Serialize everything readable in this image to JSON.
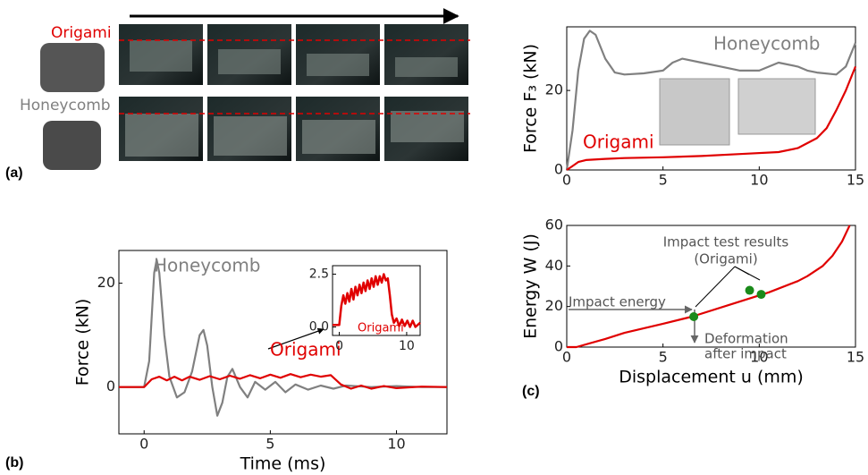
{
  "panel_a": {
    "rows": [
      "Origami",
      "Honeycomb"
    ]
  },
  "panel_labels": [
    "(a)",
    "(b)",
    "(c)"
  ],
  "chart_data": [
    {
      "type": "line",
      "xlabel": "Time (ms)",
      "ylabel": "Force (kN)",
      "xlim": [
        -1,
        12
      ],
      "ylim": [
        -9,
        26.3
      ],
      "xticks": [
        0,
        5,
        10
      ],
      "yticks": [
        0,
        20
      ],
      "series": [
        {
          "name": "Honeycomb",
          "color": "#808080",
          "x": [
            -1,
            0,
            0.2,
            0.4,
            0.5,
            0.6,
            0.8,
            1.0,
            1.3,
            1.6,
            1.9,
            2.2,
            2.35,
            2.5,
            2.7,
            2.9,
            3.1,
            3.3,
            3.5,
            3.8,
            4.1,
            4.4,
            4.8,
            5.2,
            5.6,
            6,
            6.5,
            7,
            7.5,
            8,
            9,
            10,
            11,
            12
          ],
          "values": [
            0,
            0,
            5,
            22,
            24.5,
            22,
            10,
            2,
            -2,
            -1,
            3,
            10,
            11,
            8,
            0,
            -5.5,
            -3,
            2,
            3.5,
            0,
            -2,
            1,
            -0.5,
            1,
            -1,
            0.5,
            -0.5,
            0.3,
            -0.3,
            0.3,
            0,
            0.2,
            0,
            0
          ]
        },
        {
          "name": "Origami",
          "color": "#e00000",
          "x": [
            -1,
            0,
            0.3,
            0.6,
            0.9,
            1.2,
            1.5,
            1.8,
            2.2,
            2.6,
            3,
            3.4,
            3.8,
            4.2,
            4.6,
            5,
            5.4,
            5.8,
            6.2,
            6.6,
            7,
            7.4,
            7.8,
            8.2,
            8.6,
            9,
            9.5,
            10,
            11,
            12
          ],
          "values": [
            0,
            0,
            1.5,
            2,
            1.3,
            2,
            1.3,
            2,
            1.4,
            2.1,
            1.5,
            2.2,
            1.6,
            2.3,
            1.7,
            2.4,
            1.8,
            2.5,
            1.9,
            2.4,
            2,
            2.3,
            0.5,
            -0.3,
            0.3,
            -0.3,
            0.2,
            -0.2,
            0.1,
            0
          ]
        }
      ]
    },
    {
      "type": "line",
      "xlim": [
        -1,
        12
      ],
      "ylim": [
        -0.4,
        2.9
      ],
      "xticks": [
        0,
        10
      ],
      "yticks": [
        {
          "value": 0,
          "label": "0.0"
        },
        2.5
      ],
      "series": [
        {
          "name": "Origami",
          "color": "#e00000",
          "x": [
            -1,
            0,
            0.3,
            0.6,
            0.9,
            1.2,
            1.5,
            1.8,
            2.1,
            2.4,
            2.7,
            3,
            3.3,
            3.6,
            3.9,
            4.2,
            4.5,
            4.8,
            5.1,
            5.4,
            5.7,
            6,
            6.3,
            6.6,
            6.9,
            7.2,
            7.5,
            7.8,
            8.1,
            8.5,
            8.9,
            9.3,
            9.7,
            10.1,
            10.5,
            10.9,
            11.3,
            12
          ],
          "values": [
            0.1,
            0.1,
            1,
            1.5,
            1.1,
            1.6,
            1.2,
            1.8,
            1.3,
            1.9,
            1.5,
            2,
            1.6,
            2.1,
            1.7,
            2.2,
            1.8,
            2.3,
            1.9,
            2.4,
            2,
            2.4,
            2.1,
            2.5,
            2.2,
            2.3,
            1.5,
            0.6,
            0.2,
            0.4,
            0.05,
            0.35,
            0.05,
            0.3,
            0,
            0.3,
            0,
            0.2
          ]
        }
      ]
    },
    {
      "type": "line",
      "ylabel": "Force F₃ (kN)",
      "xlim": [
        0,
        15
      ],
      "ylim": [
        0,
        36
      ],
      "xticks": [
        0,
        5,
        10,
        15
      ],
      "yticks": [
        0,
        20
      ],
      "series": [
        {
          "name": "Honeycomb",
          "color": "#808080",
          "x": [
            0,
            0.3,
            0.6,
            0.9,
            1.2,
            1.5,
            2,
            2.5,
            3,
            4,
            5,
            5.5,
            6,
            7,
            8,
            9,
            10,
            11,
            12,
            12.5,
            13,
            14,
            14.5,
            15
          ],
          "values": [
            0,
            10,
            25,
            33,
            35,
            34,
            28,
            24.5,
            24,
            24.3,
            25,
            27,
            28,
            27,
            26,
            25,
            25,
            27,
            26,
            25,
            24.5,
            24,
            26,
            32
          ]
        },
        {
          "name": "Origami",
          "color": "#e00000",
          "x": [
            0,
            0.3,
            0.6,
            1,
            2,
            3,
            5,
            7,
            9,
            11,
            12,
            13,
            13.5,
            14,
            14.5,
            15
          ],
          "values": [
            0,
            1,
            2,
            2.5,
            2.8,
            3,
            3.2,
            3.5,
            4,
            4.5,
            5.5,
            8,
            10.5,
            15,
            20,
            26
          ]
        }
      ]
    },
    {
      "type": "line",
      "xlabel": "Displacement u (mm)",
      "ylabel": "Energy W (J)",
      "xlim": [
        0,
        15
      ],
      "ylim": [
        0,
        60
      ],
      "xticks": [
        0,
        5,
        10,
        15
      ],
      "yticks": [
        0,
        20,
        40,
        60
      ],
      "series": [
        {
          "color": "#e00000",
          "x": [
            0,
            0.5,
            2,
            3,
            5,
            6.5,
            8.5,
            10.5,
            12,
            12.5,
            13.3,
            13.8,
            14.3,
            14.7
          ],
          "values": [
            0,
            0,
            4,
            7,
            11.5,
            15,
            21,
            27,
            32.5,
            35,
            40,
            45,
            52,
            60
          ]
        }
      ],
      "points": {
        "color": "#1a8a1a",
        "x": [
          6.6,
          9.5,
          10.1
        ],
        "values": [
          15,
          28,
          26
        ]
      },
      "annotations": [
        "Impact test results",
        "(Origami)",
        "Impact energy",
        "Deformation",
        "after impact"
      ]
    }
  ]
}
